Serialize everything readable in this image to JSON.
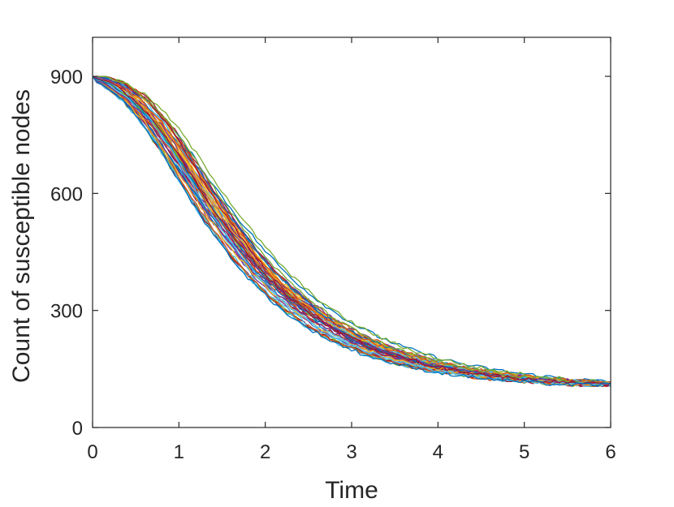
{
  "chart_data": {
    "type": "line",
    "xlabel": "Time",
    "ylabel": "Count of susceptible nodes",
    "xlim": [
      0,
      6
    ],
    "ylim": [
      0,
      1000
    ],
    "xticks": [
      0,
      1,
      2,
      3,
      4,
      5,
      6
    ],
    "yticks": [
      0,
      300,
      600,
      900
    ],
    "grid": false,
    "box": true,
    "n_series": 50,
    "colors": [
      "#0072BD",
      "#D95319",
      "#EDB120",
      "#7E2F8E",
      "#77AC30",
      "#4DBEEE",
      "#A2142F"
    ],
    "x": [
      0,
      0.25,
      0.5,
      0.75,
      1,
      1.25,
      1.5,
      1.75,
      2,
      2.25,
      2.5,
      2.75,
      3,
      3.25,
      3.5,
      3.75,
      4,
      4.25,
      4.5,
      4.75,
      5,
      5.25,
      5.5,
      5.75,
      6
    ],
    "mean_curve": [
      900,
      880,
      840,
      780,
      700,
      615,
      535,
      462,
      398,
      345,
      300,
      263,
      233,
      208,
      188,
      172,
      158,
      148,
      139,
      132,
      126,
      121,
      117,
      113,
      110
    ]
  }
}
